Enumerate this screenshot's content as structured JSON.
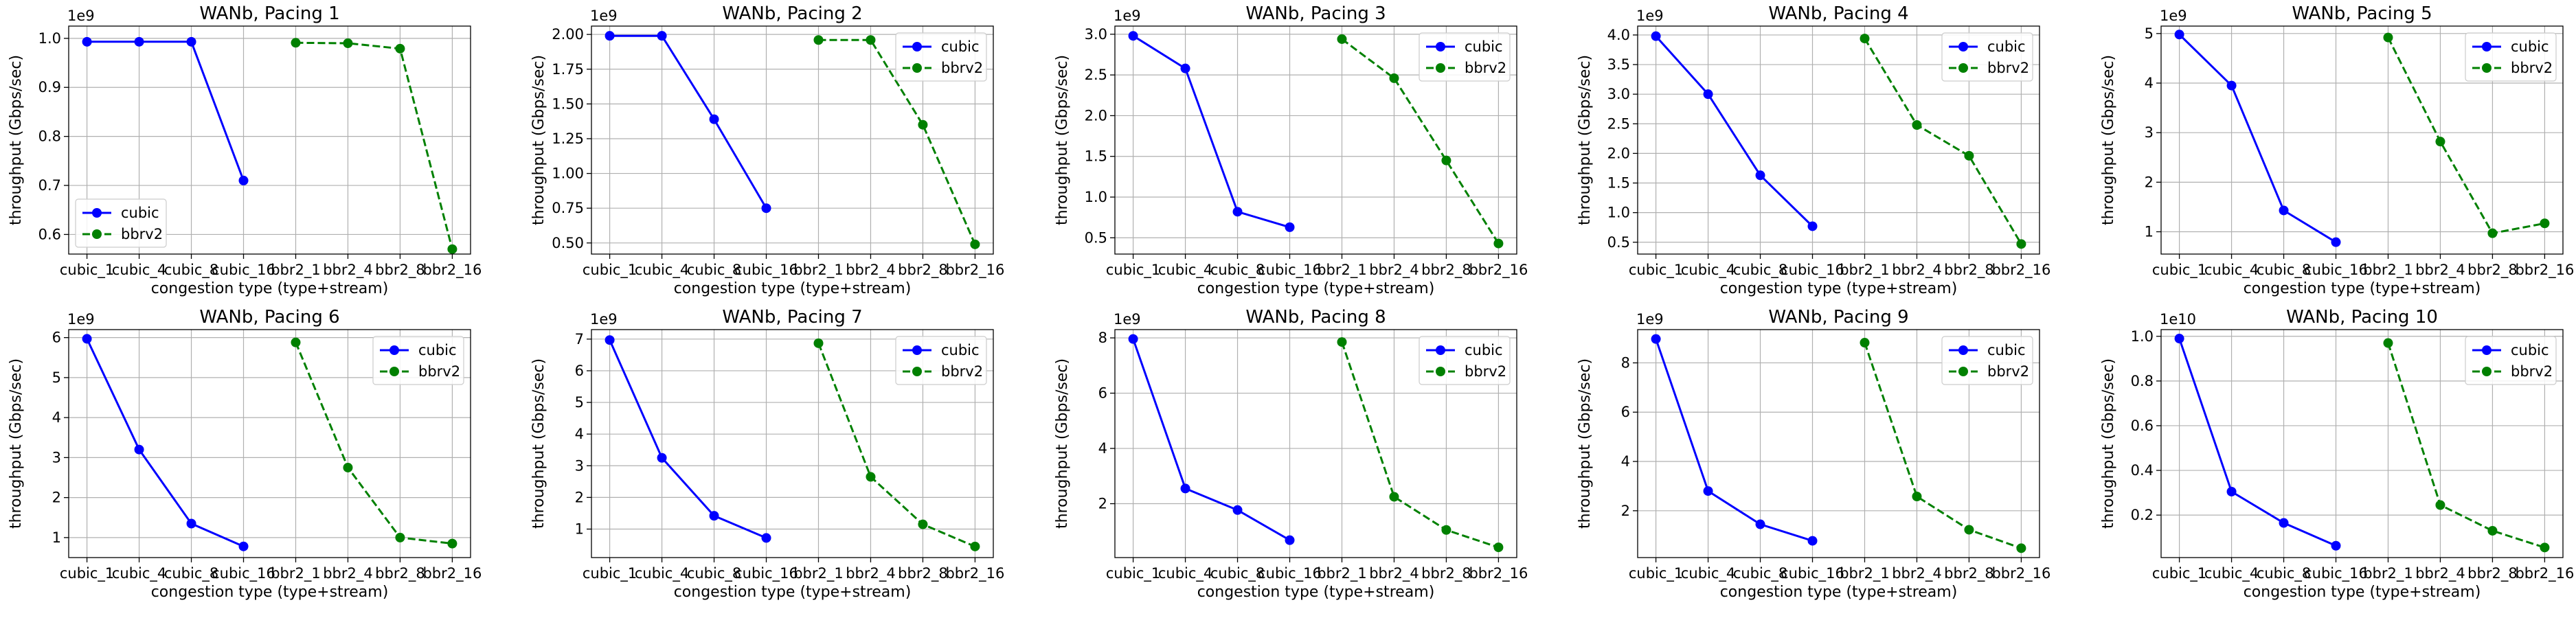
{
  "colors": {
    "cubic": "#0000ff",
    "bbrv2": "#008000"
  },
  "chart_data": [
    {
      "type": "line",
      "title": "WANb, Pacing 1",
      "xlabel": "congestion type (type+stream)",
      "ylabel": "throughput (Gbps/sec)",
      "categories": [
        "cubic_1",
        "cubic_4",
        "cubic_8",
        "cubic_16",
        "bbr2_1",
        "bbr2_4",
        "bbr2_8",
        "bbr2_16"
      ],
      "offset_label": "1e9",
      "ylim": [
        0.56,
        1.025
      ],
      "yticks": [
        0.6,
        0.7,
        0.8,
        0.9,
        1.0
      ],
      "ytick_labels": [
        "0.6",
        "0.7",
        "0.8",
        "0.9",
        "1.0"
      ],
      "legend_loc": "lower left",
      "grid": true,
      "series": [
        {
          "name": "cubic",
          "style": "solid",
          "color": "#0000ff",
          "x": [
            0,
            1,
            2,
            3
          ],
          "values": [
            0.993,
            0.993,
            0.993,
            0.71
          ]
        },
        {
          "name": "bbrv2",
          "style": "dashed",
          "color": "#008000",
          "x": [
            4,
            5,
            6,
            7
          ],
          "values": [
            0.991,
            0.99,
            0.979,
            0.57
          ]
        }
      ]
    },
    {
      "type": "line",
      "title": "WANb, Pacing 2",
      "xlabel": "congestion type (type+stream)",
      "ylabel": "throughput (Gbps/sec)",
      "categories": [
        "cubic_1",
        "cubic_4",
        "cubic_8",
        "cubic_16",
        "bbr2_1",
        "bbr2_4",
        "bbr2_8",
        "bbr2_16"
      ],
      "offset_label": "1e9",
      "ylim": [
        0.42,
        2.06
      ],
      "yticks": [
        0.5,
        0.75,
        1.0,
        1.25,
        1.5,
        1.75,
        2.0
      ],
      "ytick_labels": [
        "0.50",
        "0.75",
        "1.00",
        "1.25",
        "1.50",
        "1.75",
        "2.00"
      ],
      "legend_loc": "upper right",
      "grid": true,
      "series": [
        {
          "name": "cubic",
          "style": "solid",
          "color": "#0000ff",
          "x": [
            0,
            1,
            2,
            3
          ],
          "values": [
            1.99,
            1.99,
            1.39,
            0.75
          ]
        },
        {
          "name": "bbrv2",
          "style": "dashed",
          "color": "#008000",
          "x": [
            4,
            5,
            6,
            7
          ],
          "values": [
            1.96,
            1.96,
            1.35,
            0.49
          ]
        }
      ]
    },
    {
      "type": "line",
      "title": "WANb, Pacing 3",
      "xlabel": "congestion type (type+stream)",
      "ylabel": "throughput (Gbps/sec)",
      "categories": [
        "cubic_1",
        "cubic_4",
        "cubic_8",
        "cubic_16",
        "bbr2_1",
        "bbr2_4",
        "bbr2_8",
        "bbr2_16"
      ],
      "offset_label": "1e9",
      "ylim": [
        0.3,
        3.1
      ],
      "yticks": [
        0.5,
        1.0,
        1.5,
        2.0,
        2.5,
        3.0
      ],
      "ytick_labels": [
        "0.5",
        "1.0",
        "1.5",
        "2.0",
        "2.5",
        "3.0"
      ],
      "legend_loc": "upper right",
      "grid": true,
      "series": [
        {
          "name": "cubic",
          "style": "solid",
          "color": "#0000ff",
          "x": [
            0,
            1,
            2,
            3
          ],
          "values": [
            2.98,
            2.58,
            0.82,
            0.63
          ]
        },
        {
          "name": "bbrv2",
          "style": "dashed",
          "color": "#008000",
          "x": [
            4,
            5,
            6,
            7
          ],
          "values": [
            2.94,
            2.46,
            1.45,
            0.43
          ]
        }
      ]
    },
    {
      "type": "line",
      "title": "WANb, Pacing 4",
      "xlabel": "congestion type (type+stream)",
      "ylabel": "throughput (Gbps/sec)",
      "categories": [
        "cubic_1",
        "cubic_4",
        "cubic_8",
        "cubic_16",
        "bbr2_1",
        "bbr2_4",
        "bbr2_8",
        "bbr2_16"
      ],
      "offset_label": "1e9",
      "ylim": [
        0.3,
        4.15
      ],
      "yticks": [
        0.5,
        1.0,
        1.5,
        2.0,
        2.5,
        3.0,
        3.5,
        4.0
      ],
      "ytick_labels": [
        "0.5",
        "1.0",
        "1.5",
        "2.0",
        "2.5",
        "3.0",
        "3.5",
        "4.0"
      ],
      "legend_loc": "upper right",
      "grid": true,
      "series": [
        {
          "name": "cubic",
          "style": "solid",
          "color": "#0000ff",
          "x": [
            0,
            1,
            2,
            3
          ],
          "values": [
            3.98,
            3.0,
            1.63,
            0.77
          ]
        },
        {
          "name": "bbrv2",
          "style": "dashed",
          "color": "#008000",
          "x": [
            4,
            5,
            6,
            7
          ],
          "values": [
            3.94,
            2.48,
            1.96,
            0.47
          ]
        }
      ]
    },
    {
      "type": "line",
      "title": "WANb, Pacing 5",
      "xlabel": "congestion type (type+stream)",
      "ylabel": "throughput (Gbps/sec)",
      "categories": [
        "cubic_1",
        "cubic_4",
        "cubic_8",
        "cubic_16",
        "bbr2_1",
        "bbr2_4",
        "bbr2_8",
        "bbr2_16"
      ],
      "offset_label": "1e9",
      "ylim": [
        0.55,
        5.15
      ],
      "yticks": [
        1,
        2,
        3,
        4,
        5
      ],
      "ytick_labels": [
        "1",
        "2",
        "3",
        "4",
        "5"
      ],
      "legend_loc": "upper right",
      "grid": true,
      "series": [
        {
          "name": "cubic",
          "style": "solid",
          "color": "#0000ff",
          "x": [
            0,
            1,
            2,
            3
          ],
          "values": [
            4.98,
            3.95,
            1.43,
            0.79
          ]
        },
        {
          "name": "bbrv2",
          "style": "dashed",
          "color": "#008000",
          "x": [
            4,
            5,
            6,
            7
          ],
          "values": [
            4.92,
            2.82,
            0.97,
            1.17
          ]
        }
      ]
    },
    {
      "type": "line",
      "title": "WANb, Pacing 6",
      "xlabel": "congestion type (type+stream)",
      "ylabel": "throughput (Gbps/sec)",
      "categories": [
        "cubic_1",
        "cubic_4",
        "cubic_8",
        "cubic_16",
        "bbr2_1",
        "bbr2_4",
        "bbr2_8",
        "bbr2_16"
      ],
      "offset_label": "1e9",
      "ylim": [
        0.5,
        6.2
      ],
      "yticks": [
        1,
        2,
        3,
        4,
        5,
        6
      ],
      "ytick_labels": [
        "1",
        "2",
        "3",
        "4",
        "5",
        "6"
      ],
      "legend_loc": "upper right",
      "grid": true,
      "series": [
        {
          "name": "cubic",
          "style": "solid",
          "color": "#0000ff",
          "x": [
            0,
            1,
            2,
            3
          ],
          "values": [
            5.97,
            3.2,
            1.35,
            0.78
          ]
        },
        {
          "name": "bbrv2",
          "style": "dashed",
          "color": "#008000",
          "x": [
            4,
            5,
            6,
            7
          ],
          "values": [
            5.88,
            2.75,
            1.0,
            0.85
          ]
        }
      ]
    },
    {
      "type": "line",
      "title": "WANb, Pacing 7",
      "xlabel": "congestion type (type+stream)",
      "ylabel": "throughput (Gbps/sec)",
      "categories": [
        "cubic_1",
        "cubic_4",
        "cubic_8",
        "cubic_16",
        "bbr2_1",
        "bbr2_4",
        "bbr2_8",
        "bbr2_16"
      ],
      "offset_label": "1e9",
      "ylim": [
        0.1,
        7.3
      ],
      "yticks": [
        1,
        2,
        3,
        4,
        5,
        6,
        7
      ],
      "ytick_labels": [
        "1",
        "2",
        "3",
        "4",
        "5",
        "6",
        "7"
      ],
      "legend_loc": "upper right",
      "grid": true,
      "series": [
        {
          "name": "cubic",
          "style": "solid",
          "color": "#0000ff",
          "x": [
            0,
            1,
            2,
            3
          ],
          "values": [
            6.97,
            3.25,
            1.42,
            0.72
          ]
        },
        {
          "name": "bbrv2",
          "style": "dashed",
          "color": "#008000",
          "x": [
            4,
            5,
            6,
            7
          ],
          "values": [
            6.87,
            2.65,
            1.15,
            0.45
          ]
        }
      ]
    },
    {
      "type": "line",
      "title": "WANb, Pacing 8",
      "xlabel": "congestion type (type+stream)",
      "ylabel": "throughput (Gbps/sec)",
      "categories": [
        "cubic_1",
        "cubic_4",
        "cubic_8",
        "cubic_16",
        "bbr2_1",
        "bbr2_4",
        "bbr2_8",
        "bbr2_16"
      ],
      "offset_label": "1e9",
      "ylim": [
        0.05,
        8.3
      ],
      "yticks": [
        2,
        4,
        6,
        8
      ],
      "ytick_labels": [
        "2",
        "4",
        "6",
        "8"
      ],
      "legend_loc": "upper right",
      "grid": true,
      "series": [
        {
          "name": "cubic",
          "style": "solid",
          "color": "#0000ff",
          "x": [
            0,
            1,
            2,
            3
          ],
          "values": [
            7.96,
            2.55,
            1.77,
            0.68
          ]
        },
        {
          "name": "bbrv2",
          "style": "dashed",
          "color": "#008000",
          "x": [
            4,
            5,
            6,
            7
          ],
          "values": [
            7.85,
            2.25,
            1.05,
            0.42
          ]
        }
      ]
    },
    {
      "type": "line",
      "title": "WANb, Pacing 9",
      "xlabel": "congestion type (type+stream)",
      "ylabel": "throughput (Gbps/sec)",
      "categories": [
        "cubic_1",
        "cubic_4",
        "cubic_8",
        "cubic_16",
        "bbr2_1",
        "bbr2_4",
        "bbr2_8",
        "bbr2_16"
      ],
      "offset_label": "1e9",
      "ylim": [
        0.1,
        9.35
      ],
      "yticks": [
        2,
        4,
        6,
        8
      ],
      "ytick_labels": [
        "2",
        "4",
        "6",
        "8"
      ],
      "legend_loc": "upper right",
      "grid": true,
      "series": [
        {
          "name": "cubic",
          "style": "solid",
          "color": "#0000ff",
          "x": [
            0,
            1,
            2,
            3
          ],
          "values": [
            8.97,
            2.8,
            1.45,
            0.78
          ]
        },
        {
          "name": "bbrv2",
          "style": "dashed",
          "color": "#008000",
          "x": [
            4,
            5,
            6,
            7
          ],
          "values": [
            8.82,
            2.58,
            1.23,
            0.48
          ]
        }
      ]
    },
    {
      "type": "line",
      "title": "WANb, Pacing 10",
      "xlabel": "congestion type (type+stream)",
      "ylabel": "throughput (Gbps/sec)",
      "categories": [
        "cubic_1",
        "cubic_4",
        "cubic_8",
        "cubic_16",
        "bbr2_1",
        "bbr2_4",
        "bbr2_8",
        "bbr2_16"
      ],
      "offset_label": "1e10",
      "ylim": [
        0.01,
        1.03
      ],
      "yticks": [
        0.2,
        0.4,
        0.6,
        0.8,
        1.0
      ],
      "ytick_labels": [
        "0.2",
        "0.4",
        "0.6",
        "0.8",
        "1.0"
      ],
      "legend_loc": "upper right",
      "grid": true,
      "series": [
        {
          "name": "cubic",
          "style": "solid",
          "color": "#0000ff",
          "x": [
            0,
            1,
            2,
            3
          ],
          "values": [
            0.99,
            0.305,
            0.165,
            0.063
          ]
        },
        {
          "name": "bbrv2",
          "style": "dashed",
          "color": "#008000",
          "x": [
            4,
            5,
            6,
            7
          ],
          "values": [
            0.97,
            0.245,
            0.13,
            0.055
          ]
        }
      ]
    }
  ]
}
